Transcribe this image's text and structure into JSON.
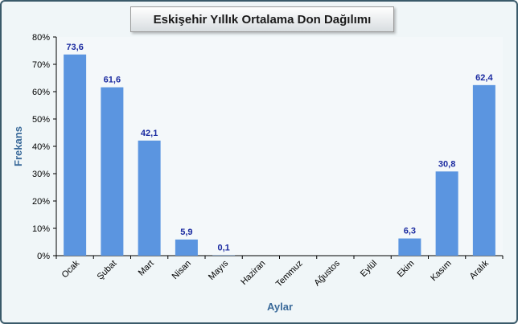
{
  "chart_data": {
    "type": "bar",
    "title": "Eskişehir Yıllık Ortalama Don Dağılımı",
    "xlabel": "Aylar",
    "ylabel": "Frekans",
    "categories": [
      "Ocak",
      "Şubat",
      "Mart",
      "Nisan",
      "Mayıs",
      "Haziran",
      "Temmuz",
      "Ağustos",
      "Eylül",
      "Ekim",
      "Kasım",
      "Aralık"
    ],
    "values": [
      73.6,
      61.6,
      42.1,
      5.9,
      0.1,
      0,
      0,
      0,
      0,
      6.3,
      30.8,
      62.4
    ],
    "data_labels": [
      "73,6",
      "61,6",
      "42,1",
      "5,9",
      "0,1",
      "",
      "",
      "",
      "",
      "6,3",
      "30,8",
      "62,4"
    ],
    "yticks": [
      "0%",
      "10%",
      "20%",
      "30%",
      "40%",
      "50%",
      "60%",
      "70%",
      "80%"
    ],
    "ylim": [
      0,
      80
    ],
    "grid": false,
    "bar_color": "#5b95e0"
  }
}
